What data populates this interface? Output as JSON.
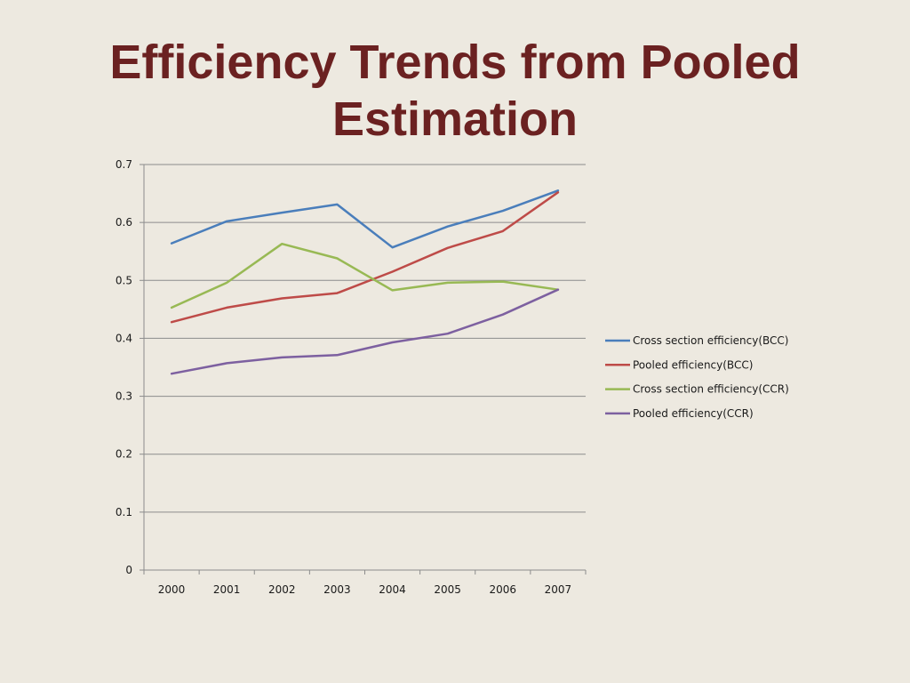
{
  "slide": {
    "title": "Efficiency Trends from Pooled Estimation",
    "background": "#ede9e0",
    "title_color": "#6b2121"
  },
  "chart_data": {
    "type": "line",
    "title": "",
    "xlabel": "",
    "ylabel": "",
    "categories": [
      "2000",
      "2001",
      "2002",
      "2003",
      "2004",
      "2005",
      "2006",
      "2007"
    ],
    "ylim": [
      0,
      0.7
    ],
    "yticks": [
      "0",
      "0.1",
      "0.2",
      "0.3",
      "0.4",
      "0.5",
      "0.6",
      "0.7"
    ],
    "grid": true,
    "legend_position": "right",
    "series": [
      {
        "name": "Cross section efficiency(BCC)",
        "color": "#4a7ebb",
        "values": [
          0.564,
          0.602,
          0.617,
          0.631,
          0.557,
          0.593,
          0.62,
          0.655
        ]
      },
      {
        "name": "Pooled efficiency(BCC)",
        "color": "#be4b48",
        "values": [
          0.428,
          0.453,
          0.469,
          0.478,
          0.515,
          0.556,
          0.585,
          0.652
        ]
      },
      {
        "name": "Cross section efficiency(CCR)",
        "color": "#98b954",
        "values": [
          0.453,
          0.496,
          0.563,
          0.538,
          0.483,
          0.496,
          0.498,
          0.484
        ]
      },
      {
        "name": "Pooled efficiency(CCR)",
        "color": "#7d60a0",
        "values": [
          0.339,
          0.357,
          0.367,
          0.371,
          0.393,
          0.408,
          0.441,
          0.484
        ]
      }
    ]
  }
}
